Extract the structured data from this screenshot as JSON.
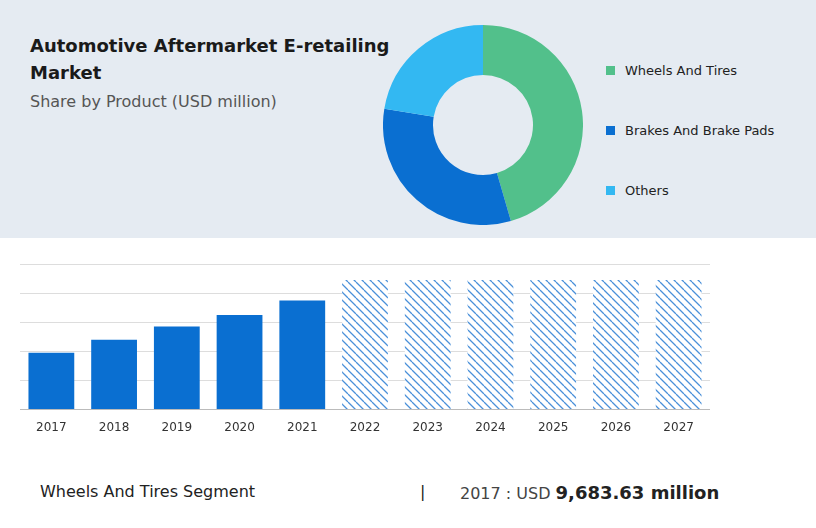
{
  "header": {
    "title": "Automotive Aftermarket E-retailing Market",
    "subtitle": "Share by Product (USD million)"
  },
  "chart_data": [
    {
      "type": "pie",
      "categories": [
        "Wheels And Tires",
        "Brakes And Brake Pads",
        "Others"
      ],
      "values": [
        45.5,
        32.1,
        22.4
      ],
      "colors": [
        "#52c08b",
        "#0a6fd1",
        "#33b8f2"
      ],
      "legend": "right"
    },
    {
      "type": "bar",
      "categories": [
        "2017",
        "2018",
        "2019",
        "2020",
        "2021",
        "2022",
        "2023",
        "2024",
        "2025",
        "2026",
        "2027"
      ],
      "series": [
        {
          "color": "#0a6fd1",
          "values": [
            1.95,
            2.4,
            2.85,
            3.25,
            3.75,
            null,
            null,
            null,
            null,
            null,
            null
          ]
        },
        {
          "color": "#4a90d9",
          "line_style": "hatched",
          "values": [
            null,
            null,
            null,
            null,
            null,
            4.45,
            4.45,
            4.45,
            4.45,
            4.45,
            4.45
          ]
        }
      ],
      "ylim": [
        0,
        5
      ],
      "yticks": [
        0,
        1,
        2,
        3,
        4,
        5
      ],
      "grid": true,
      "tick_labels": "x"
    }
  ],
  "footer": {
    "label": "Wheels And Tires Segment",
    "separator": "|",
    "prefix": "2017 : USD",
    "value": "9,683.63 million"
  }
}
